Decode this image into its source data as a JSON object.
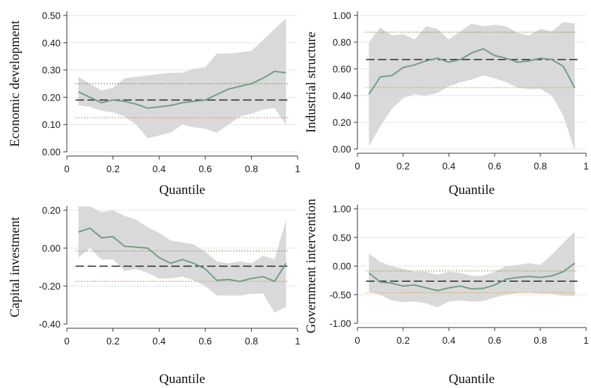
{
  "chart_data": [
    {
      "type": "line",
      "ylabel": "Economic development",
      "xlabel": "Quantile",
      "xlim": [
        0,
        1
      ],
      "ylim": [
        0,
        0.5
      ],
      "xticks": [
        0,
        0.2,
        0.4,
        0.6,
        0.8,
        1
      ],
      "xtick_labels": [
        "0",
        "0.2",
        "0.4",
        "0.6",
        "0.8",
        "1"
      ],
      "yticks": [
        0,
        0.1,
        0.2,
        0.3,
        0.4,
        0.5
      ],
      "ytick_labels": [
        "0.00",
        "0.10",
        "0.20",
        "0.30",
        "0.40",
        "0.50"
      ],
      "grid": "horizontal",
      "x": [
        0.05,
        0.1,
        0.15,
        0.2,
        0.25,
        0.3,
        0.35,
        0.4,
        0.45,
        0.5,
        0.55,
        0.6,
        0.65,
        0.7,
        0.75,
        0.8,
        0.85,
        0.9,
        0.95
      ],
      "estimate": [
        0.22,
        0.2,
        0.18,
        0.19,
        0.185,
        0.175,
        0.16,
        0.165,
        0.17,
        0.18,
        0.185,
        0.19,
        0.21,
        0.23,
        0.24,
        0.25,
        0.27,
        0.295,
        0.29
      ],
      "ci_upper": [
        0.275,
        0.25,
        0.225,
        0.235,
        0.27,
        0.275,
        0.28,
        0.285,
        0.29,
        0.29,
        0.305,
        0.31,
        0.36,
        0.36,
        0.365,
        0.37,
        0.41,
        0.45,
        0.49
      ],
      "ci_lower": [
        0.17,
        0.165,
        0.15,
        0.145,
        0.13,
        0.1,
        0.05,
        0.06,
        0.07,
        0.1,
        0.09,
        0.085,
        0.07,
        0.1,
        0.13,
        0.14,
        0.155,
        0.16,
        0.1
      ],
      "ols_estimate": 0.19,
      "ols_ci": [
        0.125,
        0.25
      ]
    },
    {
      "type": "line",
      "ylabel": "Industrial structure",
      "xlabel": "Quantile",
      "xlim": [
        0,
        1
      ],
      "ylim": [
        0,
        1
      ],
      "xticks": [
        0,
        0.2,
        0.4,
        0.6,
        0.8,
        1
      ],
      "xtick_labels": [
        "0",
        "0.2",
        "0.4",
        "0.6",
        "0.8",
        "1"
      ],
      "yticks": [
        0,
        0.2,
        0.4,
        0.6,
        0.8,
        1
      ],
      "ytick_labels": [
        "0.00",
        "0.20",
        "0.40",
        "0.60",
        "0.80",
        "1.00"
      ],
      "grid": "horizontal",
      "x": [
        0.05,
        0.1,
        0.15,
        0.2,
        0.25,
        0.3,
        0.35,
        0.4,
        0.45,
        0.5,
        0.55,
        0.6,
        0.65,
        0.7,
        0.75,
        0.8,
        0.85,
        0.9,
        0.95
      ],
      "estimate": [
        0.41,
        0.54,
        0.55,
        0.61,
        0.63,
        0.66,
        0.68,
        0.65,
        0.67,
        0.72,
        0.75,
        0.7,
        0.68,
        0.65,
        0.66,
        0.68,
        0.67,
        0.62,
        0.46
      ],
      "ci_upper": [
        0.8,
        0.91,
        0.85,
        0.86,
        0.82,
        0.92,
        0.9,
        0.82,
        0.88,
        0.94,
        0.92,
        0.93,
        0.92,
        0.87,
        0.85,
        0.9,
        0.88,
        0.95,
        0.94
      ],
      "ci_lower": [
        0.02,
        0.17,
        0.3,
        0.38,
        0.41,
        0.4,
        0.42,
        0.47,
        0.5,
        0.52,
        0.55,
        0.53,
        0.5,
        0.46,
        0.45,
        0.45,
        0.4,
        0.25,
        -0.01
      ],
      "ols_estimate": 0.67,
      "ols_ci": [
        0.46,
        0.875
      ]
    },
    {
      "type": "line",
      "ylabel": "Capital investment",
      "xlabel": "Quantile",
      "xlim": [
        0,
        1
      ],
      "ylim": [
        -0.4,
        0.2
      ],
      "xticks": [
        0,
        0.2,
        0.4,
        0.6,
        0.8,
        1
      ],
      "xtick_labels": [
        "0",
        "0.2",
        "0.4",
        "0.6",
        "0.8",
        "1"
      ],
      "yticks": [
        -0.4,
        -0.2,
        0,
        0.2
      ],
      "ytick_labels": [
        "-0.40",
        "-0.20",
        "0.00",
        "0.20"
      ],
      "grid": "horizontal",
      "x": [
        0.05,
        0.1,
        0.15,
        0.2,
        0.25,
        0.3,
        0.35,
        0.4,
        0.45,
        0.5,
        0.55,
        0.6,
        0.65,
        0.7,
        0.75,
        0.8,
        0.85,
        0.9,
        0.95
      ],
      "estimate": [
        0.085,
        0.105,
        0.055,
        0.06,
        0.01,
        0.005,
        0.0,
        -0.05,
        -0.08,
        -0.06,
        -0.08,
        -0.11,
        -0.17,
        -0.165,
        -0.175,
        -0.16,
        -0.15,
        -0.175,
        -0.08
      ],
      "ci_upper": [
        0.22,
        0.22,
        0.19,
        0.2,
        0.17,
        0.15,
        0.11,
        0.08,
        0.04,
        0.03,
        0.02,
        -0.02,
        -0.07,
        -0.08,
        -0.07,
        -0.08,
        -0.04,
        -0.06,
        0.15
      ],
      "ci_lower": [
        -0.05,
        0.0,
        -0.06,
        -0.06,
        -0.12,
        -0.11,
        -0.13,
        -0.16,
        -0.16,
        -0.15,
        -0.17,
        -0.2,
        -0.25,
        -0.25,
        -0.25,
        -0.24,
        -0.24,
        -0.34,
        -0.31
      ],
      "ols_estimate": -0.095,
      "ols_ci": [
        -0.175,
        -0.015
      ]
    },
    {
      "type": "line",
      "ylabel": "Government intervention",
      "xlabel": "Quantile",
      "xlim": [
        0,
        1
      ],
      "ylim": [
        -1,
        1
      ],
      "xticks": [
        0,
        0.2,
        0.4,
        0.6,
        0.8,
        1
      ],
      "xtick_labels": [
        "0",
        "0.2",
        "0.4",
        "0.6",
        "0.8",
        "1"
      ],
      "yticks": [
        -1,
        -0.5,
        0,
        0.5,
        1
      ],
      "ytick_labels": [
        "-1.00",
        "-0.50",
        "0.00",
        "0.50",
        "1.00"
      ],
      "grid": "horizontal",
      "x": [
        0.05,
        0.1,
        0.15,
        0.2,
        0.25,
        0.3,
        0.35,
        0.4,
        0.45,
        0.5,
        0.55,
        0.6,
        0.65,
        0.7,
        0.75,
        0.8,
        0.85,
        0.9,
        0.95
      ],
      "estimate": [
        -0.12,
        -0.28,
        -0.3,
        -0.35,
        -0.33,
        -0.38,
        -0.43,
        -0.38,
        -0.35,
        -0.4,
        -0.39,
        -0.33,
        -0.23,
        -0.2,
        -0.18,
        -0.2,
        -0.17,
        -0.1,
        0.05
      ],
      "ci_upper": [
        0.22,
        0.07,
        0.0,
        -0.05,
        -0.1,
        -0.1,
        -0.15,
        -0.1,
        -0.12,
        -0.17,
        -0.17,
        -0.1,
        0.0,
        0.02,
        0.05,
        0.02,
        0.2,
        0.4,
        0.6
      ],
      "ci_lower": [
        -0.45,
        -0.5,
        -0.6,
        -0.63,
        -0.62,
        -0.65,
        -0.72,
        -0.62,
        -0.6,
        -0.62,
        -0.61,
        -0.55,
        -0.5,
        -0.47,
        -0.46,
        -0.48,
        -0.48,
        -0.52,
        -0.52
      ],
      "ols_estimate": -0.265,
      "ols_ci": [
        -0.465,
        -0.085
      ]
    }
  ],
  "colors": {
    "estimate_line": "#6f9e86",
    "ci_band": "#d9d9d9",
    "ols_line": "#333333",
    "ols_ci_upper": "#9a8f6b",
    "ols_ci_lower": "#d9a04a",
    "grid": "#e6e6e6",
    "axis": "#333333"
  }
}
